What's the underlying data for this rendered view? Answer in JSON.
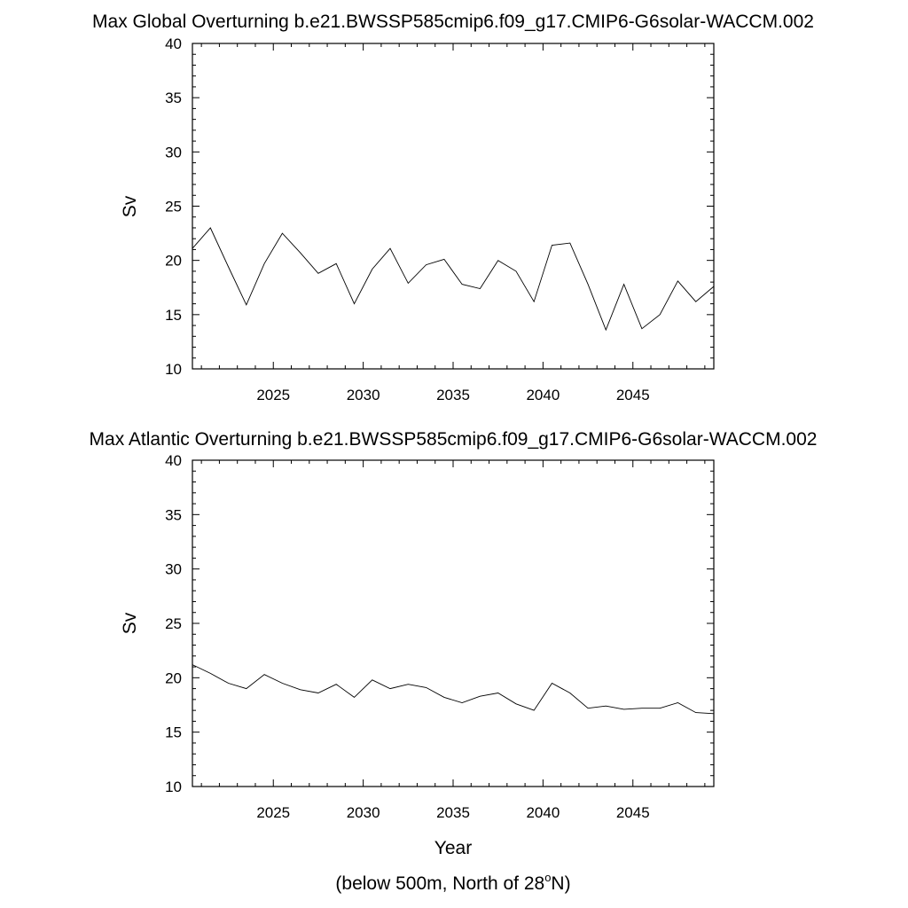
{
  "chart_data": [
    {
      "type": "line",
      "title": "Max Global Overturning b.e21.BWSSP585cmip6.f09_g17.CMIP6-G6solar-WACCM.002",
      "xlabel": "",
      "ylabel": "Sv",
      "xlim": [
        2020.5,
        2049.5
      ],
      "ylim": [
        10,
        40
      ],
      "xticks": [
        2025,
        2030,
        2035,
        2040,
        2045
      ],
      "yticks": [
        10,
        15,
        20,
        25,
        30,
        35,
        40
      ],
      "grid": false,
      "x": [
        2020.5,
        2021.5,
        2022.5,
        2023.5,
        2024.5,
        2025.5,
        2026.5,
        2027.5,
        2028.5,
        2029.5,
        2030.5,
        2031.5,
        2032.5,
        2033.5,
        2034.5,
        2035.5,
        2036.5,
        2037.5,
        2038.5,
        2039.5,
        2040.5,
        2041.5,
        2042.5,
        2043.5,
        2044.5,
        2045.5,
        2046.5,
        2047.5,
        2048.5,
        2049.5
      ],
      "values": [
        21.1,
        23.0,
        19.4,
        15.9,
        19.7,
        22.5,
        20.7,
        18.8,
        19.7,
        16.0,
        19.2,
        21.1,
        17.9,
        19.6,
        20.1,
        17.8,
        17.4,
        20.0,
        19.0,
        16.2,
        21.4,
        21.6,
        17.8,
        13.6,
        17.8,
        13.7,
        15.0,
        18.1,
        16.2,
        17.6
      ]
    },
    {
      "type": "line",
      "title": "Max Atlantic Overturning b.e21.BWSSP585cmip6.f09_g17.CMIP6-G6solar-WACCM.002",
      "xlabel": "Year",
      "ylabel": "Sv",
      "xlim": [
        2020.5,
        2049.5
      ],
      "ylim": [
        10,
        40
      ],
      "xticks": [
        2025,
        2030,
        2035,
        2040,
        2045
      ],
      "yticks": [
        10,
        15,
        20,
        25,
        30,
        35,
        40
      ],
      "grid": false,
      "x": [
        2020.5,
        2021.5,
        2022.5,
        2023.5,
        2024.5,
        2025.5,
        2026.5,
        2027.5,
        2028.5,
        2029.5,
        2030.5,
        2031.5,
        2032.5,
        2033.5,
        2034.5,
        2035.5,
        2036.5,
        2037.5,
        2038.5,
        2039.5,
        2040.5,
        2041.5,
        2042.5,
        2043.5,
        2044.5,
        2045.5,
        2046.5,
        2047.5,
        2048.5,
        2049.5
      ],
      "values": [
        21.2,
        20.4,
        19.5,
        19.0,
        20.3,
        19.5,
        18.9,
        18.6,
        19.4,
        18.2,
        19.8,
        19.0,
        19.4,
        19.1,
        18.2,
        17.7,
        18.3,
        18.6,
        17.6,
        17.0,
        19.5,
        18.6,
        17.2,
        17.4,
        17.1,
        17.2,
        17.2,
        17.7,
        16.8,
        16.7
      ]
    }
  ],
  "caption_prefix": "(below 500m, North of 28",
  "caption_degree": "o",
  "caption_suffix": "N)",
  "colors": {
    "line": "#000000",
    "frame": "#000000"
  }
}
